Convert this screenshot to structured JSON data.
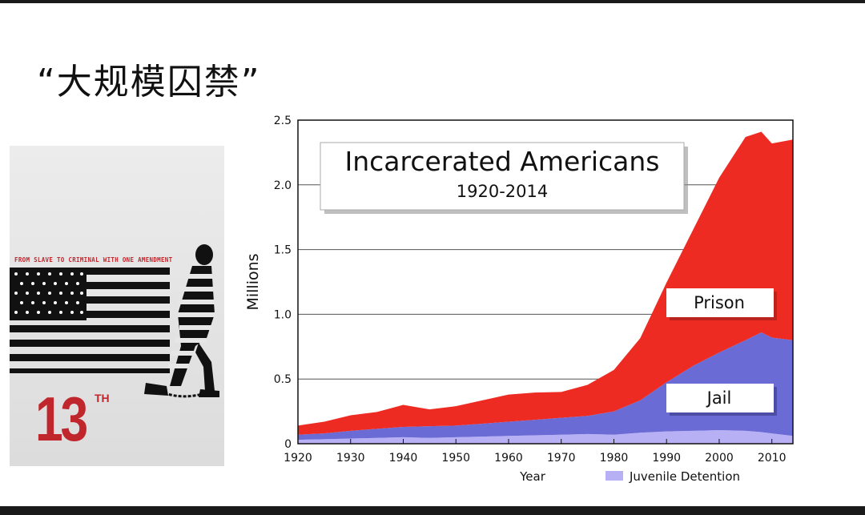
{
  "slide": {
    "title": "“大规模囚禁”"
  },
  "poster": {
    "tagline": "FROM SLAVE TO CRIMINAL WITH ONE AMENDMENT",
    "number": "13",
    "superscript": "TH"
  },
  "chart_data": {
    "type": "area",
    "stacked": true,
    "title": "Incarcerated Americans",
    "subtitle": "1920-2014",
    "xlabel": "Year",
    "ylabel": "Millions",
    "xlim": [
      1920,
      2014
    ],
    "ylim": [
      0,
      2.5
    ],
    "xticks": [
      1920,
      1930,
      1940,
      1950,
      1960,
      1970,
      1980,
      1990,
      2000,
      2010
    ],
    "yticks": [
      "0",
      "0.5",
      "1.0",
      "1.5",
      "2.0",
      "2.5"
    ],
    "grid": "horizontal",
    "x": [
      1920,
      1925,
      1930,
      1935,
      1940,
      1945,
      1950,
      1955,
      1960,
      1965,
      1970,
      1975,
      1980,
      1985,
      1990,
      1995,
      2000,
      2005,
      2008,
      2010,
      2014
    ],
    "series": [
      {
        "name": "Juvenile Detention",
        "color": "#b8b0f5",
        "values": [
          0.03,
          0.035,
          0.04,
          0.045,
          0.05,
          0.045,
          0.05,
          0.055,
          0.06,
          0.065,
          0.07,
          0.075,
          0.07,
          0.085,
          0.095,
          0.1,
          0.105,
          0.1,
          0.09,
          0.08,
          0.06
        ]
      },
      {
        "name": "Jail",
        "color": "#6b6bd6",
        "values": [
          0.04,
          0.045,
          0.06,
          0.07,
          0.08,
          0.09,
          0.09,
          0.1,
          0.11,
          0.12,
          0.13,
          0.14,
          0.18,
          0.25,
          0.38,
          0.5,
          0.6,
          0.7,
          0.77,
          0.74,
          0.74
        ]
      },
      {
        "name": "Prison",
        "color": "#ee2b22",
        "values": [
          0.07,
          0.09,
          0.12,
          0.13,
          0.17,
          0.13,
          0.15,
          0.18,
          0.21,
          0.21,
          0.2,
          0.24,
          0.32,
          0.48,
          0.77,
          1.05,
          1.35,
          1.57,
          1.55,
          1.5,
          1.55
        ]
      }
    ],
    "labels": {
      "prison": "Prison",
      "jail": "Jail",
      "juvenile": "Juvenile Detention"
    }
  }
}
